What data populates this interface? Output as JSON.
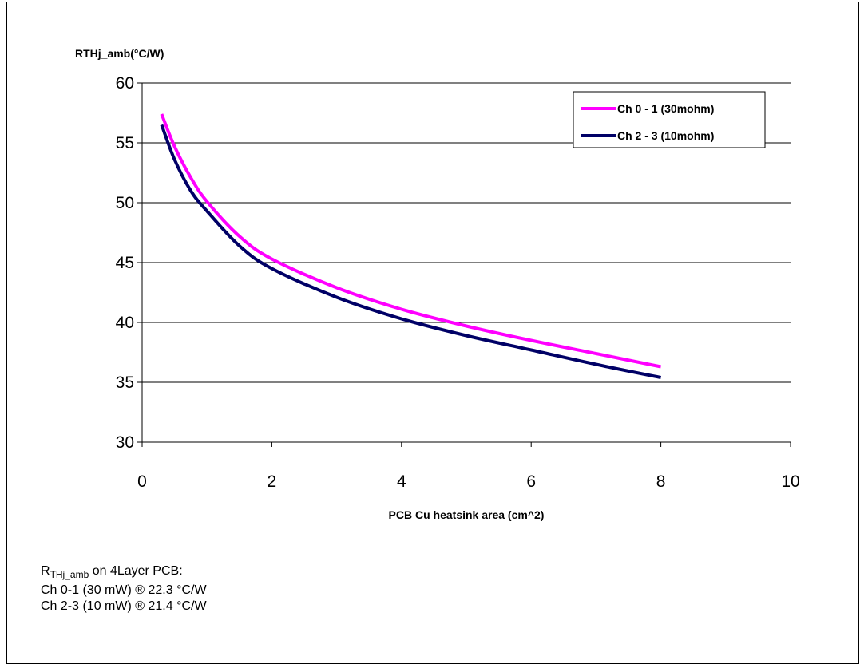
{
  "chart_data": {
    "type": "line",
    "title": "",
    "xlabel": "PCB Cu heatsink area (cm^2)",
    "ylabel": "RTHj_amb(°C/W)",
    "xlim": [
      0,
      10
    ],
    "ylim": [
      30,
      60
    ],
    "x_ticks": [
      "0",
      "2",
      "4",
      "6",
      "8",
      "10"
    ],
    "y_ticks": [
      "30",
      "35",
      "40",
      "45",
      "50",
      "55",
      "60"
    ],
    "grid": "horizontal",
    "legend_position": "top-right",
    "series": [
      {
        "name": "Ch 0 - 1 (30mohm)",
        "color": "#ff00ff",
        "x": [
          0.3,
          0.5,
          0.75,
          1.0,
          1.5,
          2.0,
          3.0,
          4.0,
          5.0,
          6.0,
          7.0,
          8.0
        ],
        "y": [
          57.4,
          54.7,
          52.1,
          50.1,
          47.2,
          45.3,
          42.9,
          41.1,
          39.7,
          38.5,
          37.4,
          36.3
        ]
      },
      {
        "name": "Ch 2 - 3 (10mohm)",
        "color": "#000066",
        "x": [
          0.3,
          0.5,
          0.75,
          1.0,
          1.5,
          2.0,
          3.0,
          4.0,
          5.0,
          6.0,
          7.0,
          8.0
        ],
        "y": [
          56.5,
          53.6,
          51.0,
          49.3,
          46.4,
          44.5,
          42.1,
          40.3,
          38.9,
          37.7,
          36.5,
          35.4
        ]
      }
    ]
  },
  "notes": {
    "line1_prefix": "R",
    "line1_sub": "THj_amb",
    "line1_suffix": " on 4Layer PCB:",
    "line2": "Ch 0-1 (30 mW) ® 22.3 °C/W",
    "line3": "Ch 2-3 (10 mW) ® 21.4 °C/W"
  }
}
